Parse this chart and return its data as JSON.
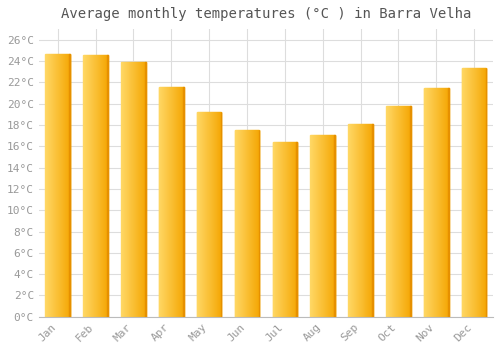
{
  "title": "Average monthly temperatures (°C ) in Barra Velha",
  "months": [
    "Jan",
    "Feb",
    "Mar",
    "Apr",
    "May",
    "Jun",
    "Jul",
    "Aug",
    "Sep",
    "Oct",
    "Nov",
    "Dec"
  ],
  "values": [
    24.7,
    24.6,
    23.9,
    21.6,
    19.2,
    17.5,
    16.4,
    17.1,
    18.1,
    19.8,
    21.5,
    23.3
  ],
  "bar_color_left": "#FFD966",
  "bar_color_right": "#F5A800",
  "background_color": "#FFFFFF",
  "grid_color": "#DDDDDD",
  "ylim": [
    0,
    27
  ],
  "ytick_step": 2,
  "title_fontsize": 10,
  "tick_fontsize": 8,
  "tick_color": "#999999",
  "title_color": "#555555",
  "font_family": "DejaVu Sans Mono",
  "bar_width": 0.65
}
